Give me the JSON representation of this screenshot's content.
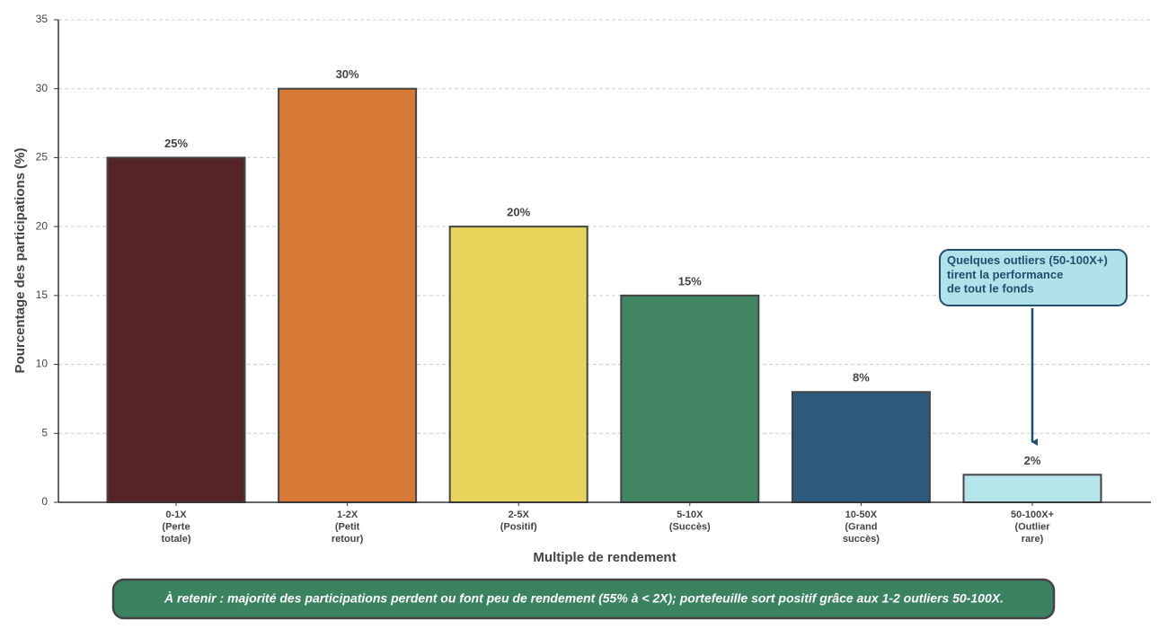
{
  "chart_data": {
    "type": "bar",
    "categories": [
      "0-1X\n(Perte\ntotale)",
      "1-2X\n(Petit\nretour)",
      "2-5X\n(Positif)",
      "5-10X\n(Succès)",
      "10-50X\n(Grand\nsuccès)",
      "50-100X+\n(Outlier\nrare)"
    ],
    "values": [
      25,
      30,
      20,
      15,
      8,
      2
    ],
    "value_labels": [
      "25%",
      "30%",
      "20%",
      "15%",
      "8%",
      "2%"
    ],
    "colors": [
      "#552426",
      "#d67a36",
      "#e9d55c",
      "#418563",
      "#2c5a7c",
      "#b5e4ea"
    ],
    "x_label": "Multiple de rendement",
    "y_label": "Pourcentage des participations (%)",
    "ylim": [
      0,
      35
    ],
    "yticks": [
      0,
      5,
      10,
      15,
      20,
      25,
      30,
      35
    ],
    "grid": true,
    "annotation": "Quelques outliers (50-100X+)\ntirent la performance\nde tout le fonds",
    "footnote": "À retenir : majorité des participations perdent ou font peu de rendement (55% à < 2X); portefeuille sort positif grâce aux 1-2 outliers 50-100X."
  }
}
